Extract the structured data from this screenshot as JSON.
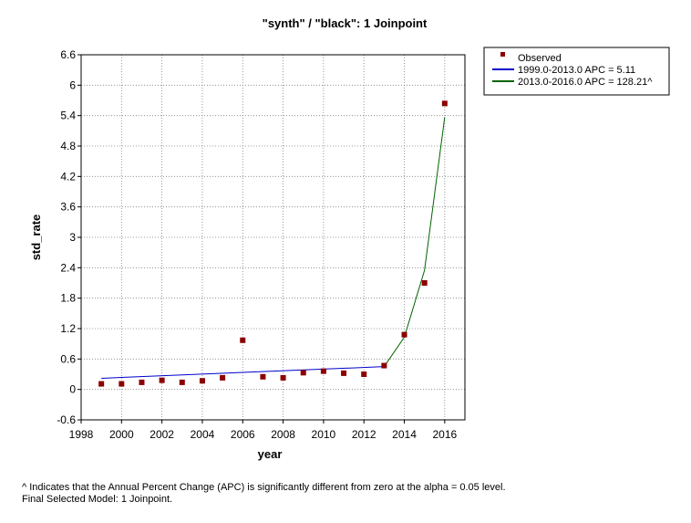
{
  "chart_data": {
    "type": "scatter",
    "title": "\"synth\" / \"black\": 1 Joinpoint",
    "xlabel": "year",
    "ylabel": "std_rate",
    "xlim": [
      1998,
      2017
    ],
    "ylim": [
      -0.6,
      6.6
    ],
    "xticks": [
      "1998",
      "2000",
      "2002",
      "2004",
      "2006",
      "2008",
      "2010",
      "2012",
      "2014",
      "2016"
    ],
    "yticks": [
      "6.6",
      "6",
      "5.4",
      "4.8",
      "4.2",
      "3.6",
      "3",
      "2.4",
      "1.8",
      "1.2",
      "0.6",
      "0",
      "-0.6"
    ],
    "grid": true,
    "legend_position": "right",
    "series": [
      {
        "name": "Observed",
        "kind": "points",
        "color": "#8b0000",
        "x": [
          1999,
          2000,
          2001,
          2002,
          2003,
          2004,
          2005,
          2006,
          2007,
          2008,
          2009,
          2010,
          2011,
          2012,
          2013,
          2014,
          2015,
          2016
        ],
        "y": [
          0.11,
          0.11,
          0.14,
          0.18,
          0.14,
          0.17,
          0.23,
          0.97,
          0.25,
          0.23,
          0.33,
          0.36,
          0.32,
          0.3,
          0.47,
          1.08,
          2.1,
          5.64
        ]
      },
      {
        "name": "1999.0-2013.0 APC =  5.11",
        "kind": "line",
        "color": "#0000cc",
        "x": [
          1999,
          2013
        ],
        "y": [
          0.22,
          0.45
        ]
      },
      {
        "name": "2013.0-2016.0 APC = 128.21^",
        "kind": "line",
        "color": "#006400",
        "x": [
          2013,
          2014,
          2015,
          2016
        ],
        "y": [
          0.45,
          1.03,
          2.35,
          5.37
        ]
      }
    ]
  },
  "footnote": {
    "line1": "^ Indicates that the Annual Percent Change (APC) is significantly different from zero at the alpha = 0.05 level.",
    "line2": "Final Selected Model: 1 Joinpoint."
  }
}
